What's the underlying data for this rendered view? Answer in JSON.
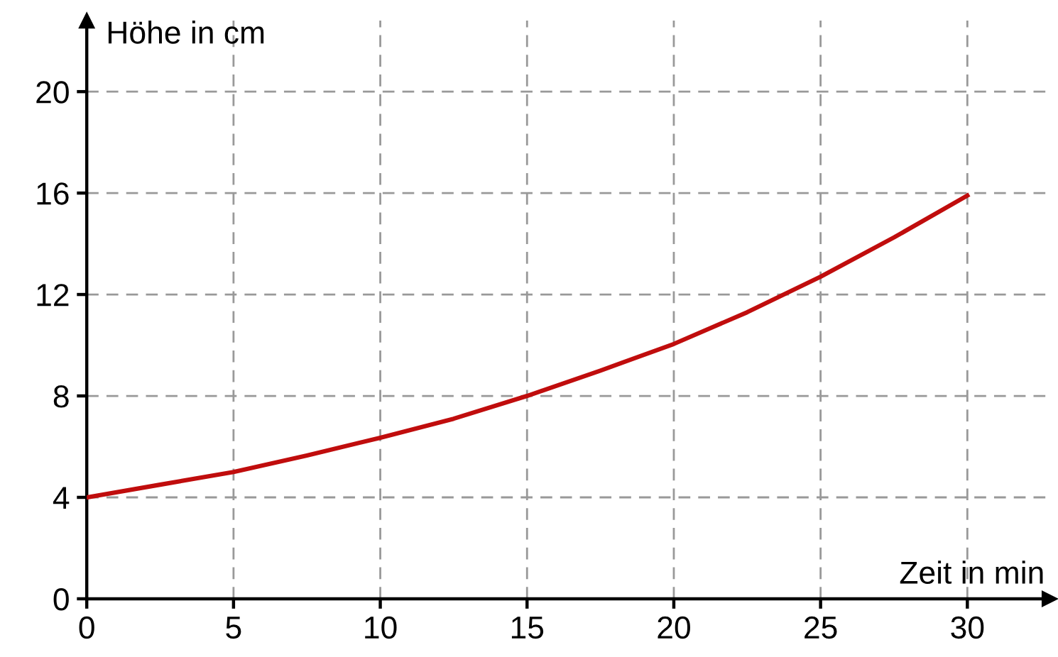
{
  "chart_data": {
    "type": "line",
    "xlabel": "Zeit in min",
    "ylabel": "Höhe in cm",
    "x": [
      0,
      2.5,
      5,
      7.5,
      10,
      12.5,
      15,
      17.5,
      20,
      22.5,
      25,
      27.5,
      30
    ],
    "series": [
      {
        "color": "#c00d0d",
        "values": [
          4,
          4.5,
          5.0,
          5.65,
          6.35,
          7.1,
          8.0,
          9.0,
          10.05,
          11.3,
          12.7,
          14.25,
          15.9
        ]
      }
    ],
    "xlim": [
      0,
      32.8
    ],
    "ylim": [
      0,
      22.8
    ],
    "xticks": [
      0,
      5,
      10,
      15,
      20,
      25,
      30
    ],
    "yticks": [
      0,
      4,
      8,
      12,
      16,
      20
    ],
    "grid": true,
    "marker": "none",
    "line_style": "solid"
  }
}
